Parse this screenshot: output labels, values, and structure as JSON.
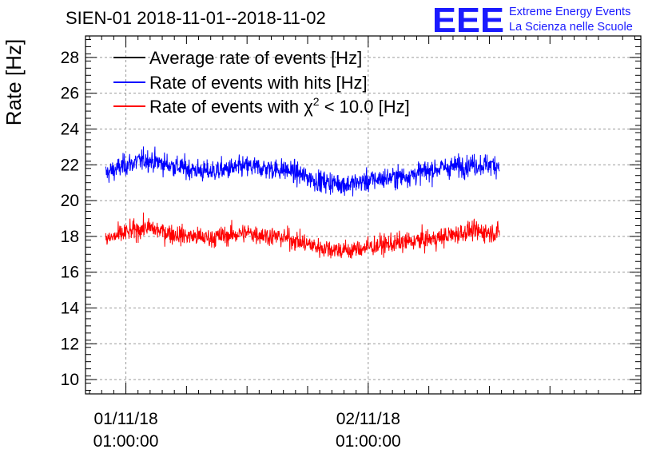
{
  "chart_data": {
    "type": "line",
    "title": "SIEN-01 2018-11-01--2018-11-02",
    "ylabel": "Rate [Hz]",
    "xlabel": "",
    "ylim": [
      9.2,
      29.2
    ],
    "yticks": [
      10,
      12,
      14,
      16,
      18,
      20,
      22,
      24,
      26,
      28
    ],
    "x_tick_labels": [
      {
        "date": "01/11/18",
        "time": "01:00:00"
      },
      {
        "date": "02/11/18",
        "time": "01:00:00"
      }
    ],
    "x_tick_dates": [
      "2018-11-01T01:00:00",
      "2018-11-02T01:00:00"
    ],
    "x_range": [
      "2018-10-31T21:00:00",
      "2018-11-03T04:00:00"
    ],
    "data_range": [
      "2018-10-31T23:00:00",
      "2018-11-02T14:00:00"
    ],
    "grid": true,
    "legend_position": "top-left",
    "series": [
      {
        "name": "Average rate of events [Hz]",
        "color": "#000000",
        "profile": []
      },
      {
        "name": "Rate of events with hits [Hz]",
        "color": "#0000ff",
        "noise": 0.55,
        "profile": [
          {
            "t": "2018-10-31T23:00:00",
            "v": 21.5
          },
          {
            "t": "2018-11-01T01:00:00",
            "v": 22.0
          },
          {
            "t": "2018-11-01T03:00:00",
            "v": 22.3
          },
          {
            "t": "2018-11-01T06:00:00",
            "v": 21.9
          },
          {
            "t": "2018-11-01T09:00:00",
            "v": 21.6
          },
          {
            "t": "2018-11-01T13:00:00",
            "v": 21.9
          },
          {
            "t": "2018-11-01T17:00:00",
            "v": 21.7
          },
          {
            "t": "2018-11-01T20:00:00",
            "v": 21.1
          },
          {
            "t": "2018-11-01T23:00:00",
            "v": 20.9
          },
          {
            "t": "2018-11-02T02:00:00",
            "v": 21.2
          },
          {
            "t": "2018-11-02T05:00:00",
            "v": 21.4
          },
          {
            "t": "2018-11-02T08:00:00",
            "v": 21.8
          },
          {
            "t": "2018-11-02T11:00:00",
            "v": 22.0
          },
          {
            "t": "2018-11-02T14:00:00",
            "v": 22.0
          }
        ]
      },
      {
        "name_prefix": "Rate of events with ",
        "name_chi": "χ",
        "name_sup": "2",
        "name_suffix": " < 10.0 [Hz]",
        "color": "#ff0000",
        "noise": 0.5,
        "profile": [
          {
            "t": "2018-10-31T23:00:00",
            "v": 17.8
          },
          {
            "t": "2018-11-01T01:00:00",
            "v": 18.2
          },
          {
            "t": "2018-11-01T03:00:00",
            "v": 18.5
          },
          {
            "t": "2018-11-01T06:00:00",
            "v": 18.1
          },
          {
            "t": "2018-11-01T09:00:00",
            "v": 17.9
          },
          {
            "t": "2018-11-01T13:00:00",
            "v": 18.2
          },
          {
            "t": "2018-11-01T17:00:00",
            "v": 17.9
          },
          {
            "t": "2018-11-01T20:00:00",
            "v": 17.4
          },
          {
            "t": "2018-11-01T23:00:00",
            "v": 17.2
          },
          {
            "t": "2018-11-02T02:00:00",
            "v": 17.5
          },
          {
            "t": "2018-11-02T05:00:00",
            "v": 17.7
          },
          {
            "t": "2018-11-02T08:00:00",
            "v": 17.9
          },
          {
            "t": "2018-11-02T11:00:00",
            "v": 18.3
          },
          {
            "t": "2018-11-02T14:00:00",
            "v": 18.2
          }
        ]
      }
    ]
  },
  "logo": {
    "mark": "EEE",
    "line1": "Extreme Energy Events",
    "line2": "La Scienza nelle Scuole"
  }
}
